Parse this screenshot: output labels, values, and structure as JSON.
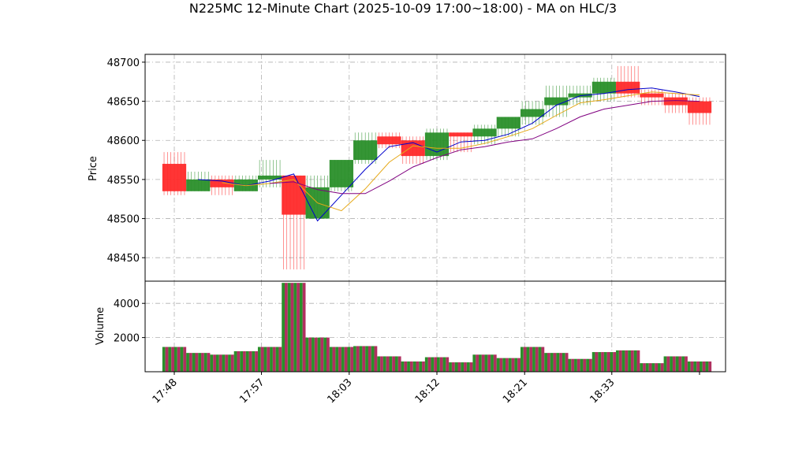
{
  "chart_data": {
    "type": "candlestick",
    "title": "N225MC 12-Minute Chart (2025-10-09 17:00~18:00) - MA on HLC/3",
    "price_panel": {
      "ylabel": "Price",
      "ylim": [
        48420,
        48710
      ],
      "yticks": [
        48450,
        48500,
        48550,
        48600,
        48650,
        48700
      ],
      "grid": true
    },
    "volume_panel": {
      "ylabel": "Volume",
      "ylim": [
        0,
        5300
      ],
      "yticks": [
        2000,
        4000
      ],
      "grid": true
    },
    "x_ticks": [
      "17:48",
      "17:57",
      "18:03",
      "18:12",
      "18:21",
      "18:33",
      ""
    ],
    "bars": [
      {
        "open": 48570,
        "high": 48585,
        "low": 48530,
        "close": 48535,
        "volume": 1450
      },
      {
        "open": 48535,
        "high": 48560,
        "low": 48535,
        "close": 48550,
        "volume": 1100
      },
      {
        "open": 48550,
        "high": 48555,
        "low": 48530,
        "close": 48540,
        "volume": 1000
      },
      {
        "open": 48535,
        "high": 48555,
        "low": 48535,
        "close": 48550,
        "volume": 1200
      },
      {
        "open": 48550,
        "high": 48575,
        "low": 48540,
        "close": 48555,
        "volume": 1450
      },
      {
        "open": 48555,
        "high": 48555,
        "low": 48435,
        "close": 48505,
        "volume": 5200
      },
      {
        "open": 48500,
        "high": 48555,
        "low": 48500,
        "close": 48540,
        "volume": 2000
      },
      {
        "open": 48540,
        "high": 48575,
        "low": 48535,
        "close": 48575,
        "volume": 1450
      },
      {
        "open": 48575,
        "high": 48610,
        "low": 48570,
        "close": 48600,
        "volume": 1500
      },
      {
        "open": 48605,
        "high": 48610,
        "low": 48590,
        "close": 48595,
        "volume": 900
      },
      {
        "open": 48600,
        "high": 48605,
        "low": 48570,
        "close": 48580,
        "volume": 600
      },
      {
        "open": 48580,
        "high": 48615,
        "low": 48575,
        "close": 48610,
        "volume": 850
      },
      {
        "open": 48610,
        "high": 48610,
        "low": 48585,
        "close": 48605,
        "volume": 550
      },
      {
        "open": 48605,
        "high": 48620,
        "low": 48595,
        "close": 48615,
        "volume": 1000
      },
      {
        "open": 48615,
        "high": 48630,
        "low": 48605,
        "close": 48630,
        "volume": 800
      },
      {
        "open": 48630,
        "high": 48650,
        "low": 48620,
        "close": 48640,
        "volume": 1450
      },
      {
        "open": 48645,
        "high": 48670,
        "low": 48630,
        "close": 48655,
        "volume": 1100
      },
      {
        "open": 48655,
        "high": 48670,
        "low": 48645,
        "close": 48660,
        "volume": 750
      },
      {
        "open": 48660,
        "high": 48680,
        "low": 48650,
        "close": 48675,
        "volume": 1150
      },
      {
        "open": 48675,
        "high": 48695,
        "low": 48655,
        "close": 48660,
        "volume": 1250
      },
      {
        "open": 48660,
        "high": 48665,
        "low": 48645,
        "close": 48655,
        "volume": 500
      },
      {
        "open": 48655,
        "high": 48660,
        "low": 48635,
        "close": 48645,
        "volume": 900
      },
      {
        "open": 48650,
        "high": 48655,
        "low": 48620,
        "close": 48635,
        "volume": 600
      }
    ],
    "ma_lines": [
      {
        "color": "#0000cc",
        "values": [
          null,
          48550,
          48548,
          48542,
          48548,
          48557,
          48497,
          48530,
          48563,
          48592,
          48597,
          48585,
          48598,
          48600,
          48608,
          48622,
          48645,
          48657,
          48660,
          48665,
          48667,
          48662,
          48656
        ]
      },
      {
        "color": "#e6a817",
        "values": [
          null,
          null,
          48546,
          48542,
          48545,
          48550,
          48520,
          48510,
          48538,
          48572,
          48593,
          48590,
          48590,
          48596,
          48605,
          48615,
          48632,
          48648,
          48652,
          48657,
          48662,
          48660,
          48658
        ]
      },
      {
        "color": "#800080",
        "values": [
          null,
          null,
          null,
          null,
          48545,
          48547,
          48537,
          48532,
          48532,
          48548,
          48566,
          48578,
          48588,
          48592,
          48598,
          48602,
          48615,
          48630,
          48640,
          48645,
          48650,
          48651,
          48650
        ]
      }
    ],
    "colors": {
      "up": "#2a8f2a",
      "down": "#ff2a2a",
      "volume_a": "#2a8f2a",
      "volume_b": "#b03060"
    }
  }
}
